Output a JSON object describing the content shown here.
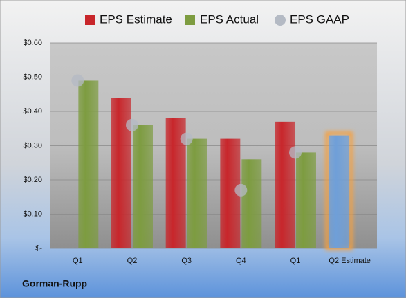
{
  "chart_data": {
    "type": "bar",
    "footer": "Gorman-Rupp",
    "categories": [
      "Q1",
      "Q2",
      "Q3",
      "Q4",
      "Q1",
      "Q2 Estimate"
    ],
    "series": [
      {
        "name": "EPS Estimate",
        "color": "#c8262b",
        "values": [
          null,
          0.44,
          0.38,
          0.32,
          0.37,
          0.33
        ],
        "point_colors": [
          null,
          "#c8262b",
          "#c8262b",
          "#c8262b",
          "#c8262b",
          "#6f9fd8"
        ]
      },
      {
        "name": "EPS Actual",
        "color": "#7d9c40",
        "values": [
          0.49,
          0.36,
          0.32,
          0.26,
          0.28,
          null
        ]
      },
      {
        "name": "EPS GAAP",
        "color": "#b4bac4",
        "marker": "circle",
        "values": [
          0.49,
          0.36,
          0.32,
          0.17,
          0.28,
          null
        ]
      }
    ],
    "ylim": [
      0,
      0.6
    ],
    "yticks": [
      {
        "value": 0,
        "label": "$-"
      },
      {
        "value": 0.1,
        "label": "$0.10"
      },
      {
        "value": 0.2,
        "label": "$0.20"
      },
      {
        "value": 0.3,
        "label": "$0.30"
      },
      {
        "value": 0.4,
        "label": "$0.40"
      },
      {
        "value": 0.5,
        "label": "$0.50"
      },
      {
        "value": 0.6,
        "label": "$0.60"
      }
    ],
    "grid": true,
    "legend": "top"
  }
}
